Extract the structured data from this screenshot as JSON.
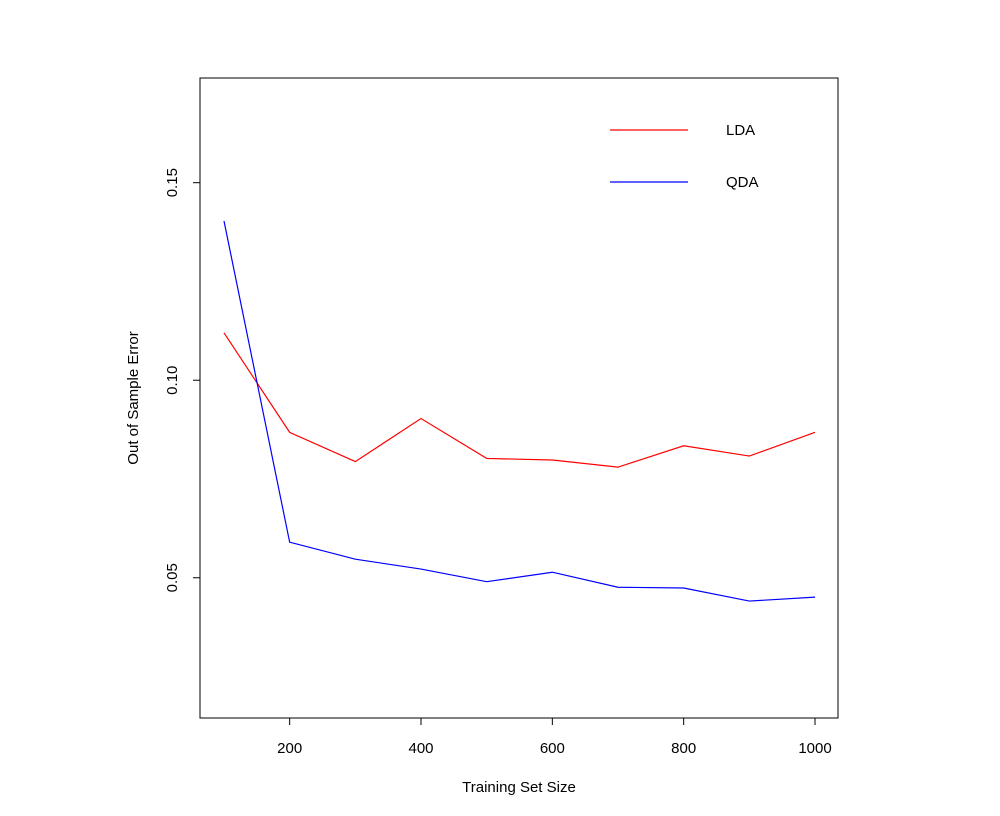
{
  "chart_data": {
    "type": "line",
    "title": "",
    "xlabel": "Training Set Size",
    "ylabel": "Out of Sample Error",
    "x": [
      100,
      200,
      300,
      400,
      500,
      600,
      700,
      800,
      900,
      1000
    ],
    "xlim": [
      100,
      1000
    ],
    "ylim": [
      0.0145,
      0.1765
    ],
    "x_ticks": [
      "200",
      "400",
      "600",
      "800",
      "1000"
    ],
    "y_ticks": [
      "0.05",
      "0.10",
      "0.15"
    ],
    "grid": false,
    "legend_position": "top-right",
    "series": [
      {
        "name": "LDA",
        "color": "#ff0000",
        "values": [
          0.112,
          0.0868,
          0.0794,
          0.0903,
          0.0802,
          0.0798,
          0.078,
          0.0834,
          0.0808,
          0.0868
        ]
      },
      {
        "name": "QDA",
        "color": "#0000ff",
        "values": [
          0.1403,
          0.059,
          0.0547,
          0.0522,
          0.049,
          0.0514,
          0.0476,
          0.0474,
          0.0441,
          0.0451
        ]
      }
    ]
  }
}
